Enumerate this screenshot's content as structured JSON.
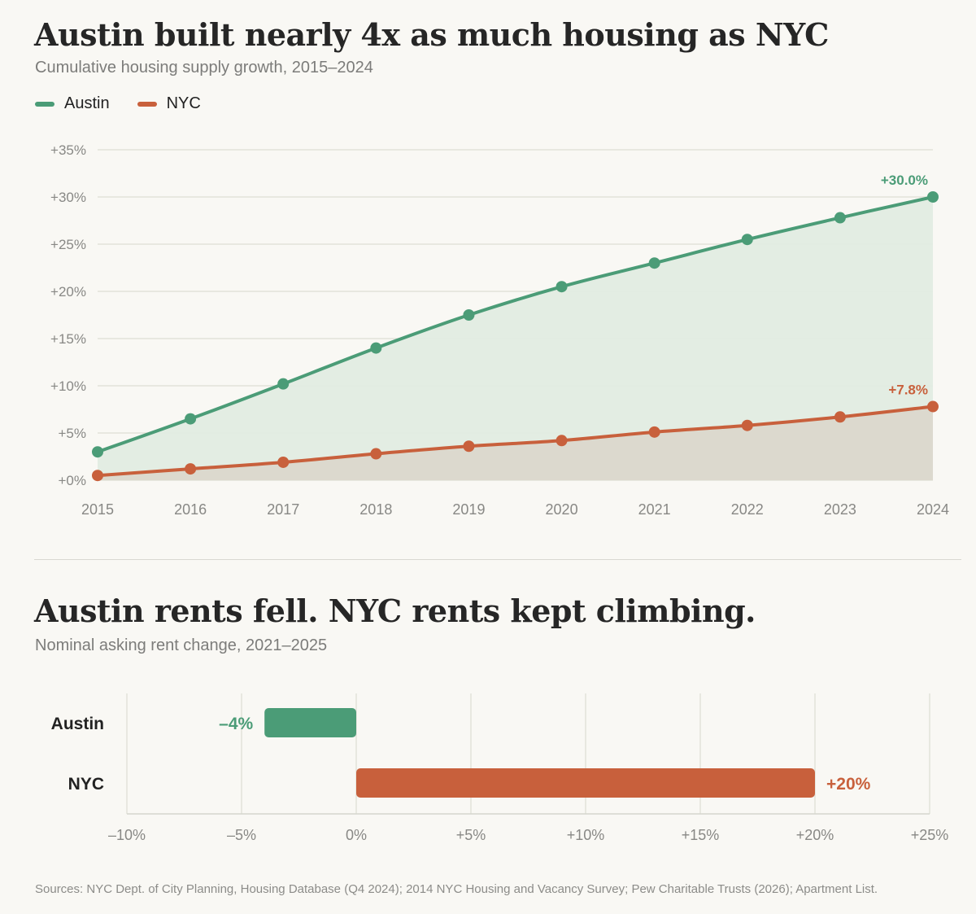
{
  "colors": {
    "austin": "#4b9c77",
    "nyc": "#c8603c",
    "austin_fill": "#e1ece1",
    "nyc_fill": "#dcd9ce",
    "grid": "#e3e2da",
    "axis_text": "#888885"
  },
  "top": {
    "title": "Austin built nearly 4x as much housing as NYC",
    "subtitle": "Cumulative housing supply growth, 2015–2024",
    "legend": [
      {
        "label": "Austin",
        "color": "#4b9c77"
      },
      {
        "label": "NYC",
        "color": "#c8603c"
      }
    ]
  },
  "bottom": {
    "title": "Austin rents fell. NYC rents kept climbing.",
    "subtitle": "Nominal asking rent change, 2021–2025"
  },
  "source": "Sources: NYC Dept. of City Planning, Housing Database (Q4 2024); 2014 NYC Housing and Vacancy Survey; Pew Charitable Trusts (2026); Apartment List.",
  "chart_data": [
    {
      "type": "line",
      "title": "Austin built nearly 4x as much housing as NYC",
      "subtitle": "Cumulative housing supply growth, 2015–2024",
      "x": [
        2015,
        2016,
        2017,
        2018,
        2019,
        2020,
        2021,
        2022,
        2023,
        2024
      ],
      "x_tick_labels": [
        "2015",
        "2016",
        "2017",
        "2018",
        "2019",
        "2020",
        "2021",
        "2022",
        "2023",
        "2024"
      ],
      "ylim": [
        0,
        35
      ],
      "y_ticks": [
        0,
        5,
        10,
        15,
        20,
        25,
        30,
        35
      ],
      "y_tick_labels": [
        "+0%",
        "+5%",
        "+10%",
        "+15%",
        "+20%",
        "+25%",
        "+30%",
        "+35%"
      ],
      "grid": true,
      "legend_position": "top-left",
      "series": [
        {
          "name": "Austin",
          "values": [
            3.0,
            6.5,
            10.2,
            14.0,
            17.5,
            20.5,
            23.0,
            25.5,
            27.8,
            30.0
          ],
          "end_label": "+30.0%"
        },
        {
          "name": "NYC",
          "values": [
            0.5,
            1.2,
            1.9,
            2.8,
            3.6,
            4.2,
            5.1,
            5.8,
            6.7,
            7.8
          ],
          "end_label": "+7.8%"
        }
      ]
    },
    {
      "type": "bar",
      "orientation": "horizontal",
      "title": "Austin rents fell. NYC rents kept climbing.",
      "subtitle": "Nominal asking rent change, 2021–2025",
      "categories": [
        "Austin",
        "NYC"
      ],
      "values": [
        -4,
        20
      ],
      "value_labels": [
        "–4%",
        "+20%"
      ],
      "xlim": [
        -10,
        25
      ],
      "x_ticks": [
        -10,
        -5,
        0,
        5,
        10,
        15,
        20,
        25
      ],
      "x_tick_labels": [
        "–10%",
        "–5%",
        "0%",
        "+5%",
        "+10%",
        "+15%",
        "+20%",
        "+25%"
      ],
      "grid": true
    }
  ]
}
